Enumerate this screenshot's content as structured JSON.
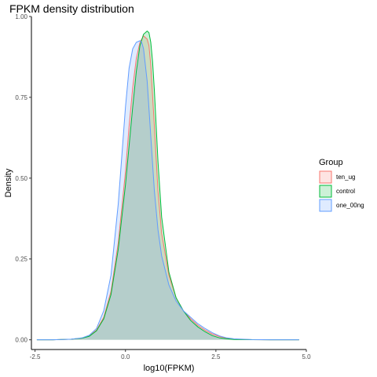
{
  "chart_data": {
    "type": "area",
    "title": "FPKM density distribution",
    "xlabel": "log10(FPKM)",
    "ylabel": "Density",
    "xlim": [
      -2.6,
      5.0
    ],
    "ylim": [
      -0.03,
      1.0
    ],
    "xticks": [
      -2.5,
      0.0,
      2.5,
      5.0
    ],
    "xtick_labels": [
      "-2.5",
      "0.0",
      "2.5",
      "5.0"
    ],
    "yticks": [
      0.0,
      0.25,
      0.5,
      0.75,
      1.0
    ],
    "ytick_labels": [
      "0.00",
      "0.25",
      "0.50",
      "0.75",
      "1.00"
    ],
    "grid": false,
    "legend": {
      "title": "Group",
      "position": "right"
    },
    "series": [
      {
        "name": "ten_ug",
        "color": "#F8766D",
        "fill": "#F8766D",
        "x": [
          -2.45,
          -2.0,
          -1.5,
          -1.2,
          -1.0,
          -0.8,
          -0.6,
          -0.4,
          -0.2,
          0.0,
          0.1,
          0.2,
          0.3,
          0.4,
          0.5,
          0.6,
          0.65,
          0.7,
          0.8,
          0.9,
          1.0,
          1.2,
          1.4,
          1.6,
          1.8,
          2.0,
          2.2,
          2.4,
          2.6,
          2.8,
          3.0,
          3.5,
          4.0,
          4.8
        ],
        "y": [
          0.0,
          0.0,
          0.002,
          0.005,
          0.012,
          0.03,
          0.07,
          0.15,
          0.3,
          0.52,
          0.66,
          0.78,
          0.87,
          0.92,
          0.94,
          0.93,
          0.91,
          0.85,
          0.66,
          0.46,
          0.33,
          0.2,
          0.13,
          0.09,
          0.065,
          0.045,
          0.03,
          0.018,
          0.01,
          0.005,
          0.002,
          0.0005,
          0.0,
          0.0
        ]
      },
      {
        "name": "control",
        "color": "#00BA38",
        "fill": "#00BA38",
        "x": [
          -2.45,
          -2.0,
          -1.5,
          -1.2,
          -1.0,
          -0.8,
          -0.6,
          -0.4,
          -0.2,
          0.0,
          0.2,
          0.3,
          0.4,
          0.5,
          0.6,
          0.65,
          0.7,
          0.75,
          0.8,
          0.9,
          1.0,
          1.2,
          1.4,
          1.6,
          1.8,
          2.0,
          2.2,
          2.4,
          2.6,
          2.8,
          3.0,
          3.5,
          4.0,
          4.8
        ],
        "y": [
          0.0,
          0.0,
          0.002,
          0.005,
          0.011,
          0.028,
          0.065,
          0.14,
          0.28,
          0.48,
          0.72,
          0.83,
          0.91,
          0.945,
          0.955,
          0.95,
          0.92,
          0.86,
          0.77,
          0.55,
          0.38,
          0.21,
          0.13,
          0.09,
          0.06,
          0.04,
          0.025,
          0.013,
          0.006,
          0.003,
          0.001,
          0.0003,
          0.0,
          0.0
        ]
      },
      {
        "name": "one_00ng",
        "color": "#619CFF",
        "fill": "#619CFF",
        "x": [
          -2.45,
          -2.0,
          -1.5,
          -1.2,
          -1.0,
          -0.8,
          -0.6,
          -0.4,
          -0.2,
          0.0,
          0.1,
          0.2,
          0.3,
          0.4,
          0.45,
          0.5,
          0.6,
          0.7,
          0.8,
          0.9,
          1.0,
          1.2,
          1.4,
          1.6,
          1.8,
          2.0,
          2.2,
          2.4,
          2.6,
          2.8,
          3.0,
          3.5,
          4.0,
          4.8
        ],
        "y": [
          0.0,
          0.0,
          0.002,
          0.006,
          0.014,
          0.035,
          0.09,
          0.2,
          0.42,
          0.72,
          0.84,
          0.9,
          0.92,
          0.925,
          0.92,
          0.9,
          0.8,
          0.63,
          0.46,
          0.34,
          0.26,
          0.17,
          0.12,
          0.09,
          0.07,
          0.05,
          0.035,
          0.022,
          0.012,
          0.006,
          0.003,
          0.0007,
          0.0001,
          0.0
        ]
      }
    ]
  }
}
